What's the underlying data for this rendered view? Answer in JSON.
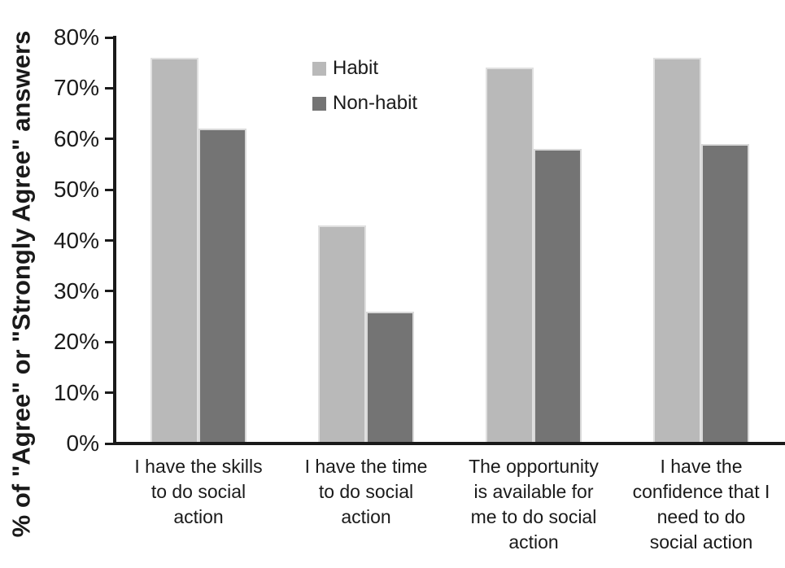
{
  "chart_data": {
    "type": "bar",
    "categories": [
      "I have the skills\nto do social\naction",
      "I have the time\nto do social\naction",
      "The opportunity\nis available for\nme to do social\naction",
      "I have the\nconfidence that I\nneed to do\nsocial action"
    ],
    "series": [
      {
        "name": "Habit",
        "color": "#b9b9b9",
        "values": [
          76,
          43,
          74,
          76
        ]
      },
      {
        "name": "Non-habit",
        "color": "#747474",
        "values": [
          62,
          26,
          58,
          59
        ]
      }
    ],
    "title": "",
    "xlabel": "",
    "ylabel": "% of \"Agree\" or \"Strongly Agree\" answers",
    "ylim": [
      0,
      80
    ],
    "ytick_step": 10,
    "ytick_labels": [
      "0%",
      "10%",
      "20%",
      "30%",
      "40%",
      "50%",
      "60%",
      "70%",
      "80%"
    ],
    "grid": false,
    "legend_position": "upper-left-inside"
  },
  "colors": {
    "axis": "#1a1a1a",
    "text": "#1a1a1a",
    "background": "#ffffff",
    "bar_border": "#e4e4e4"
  }
}
